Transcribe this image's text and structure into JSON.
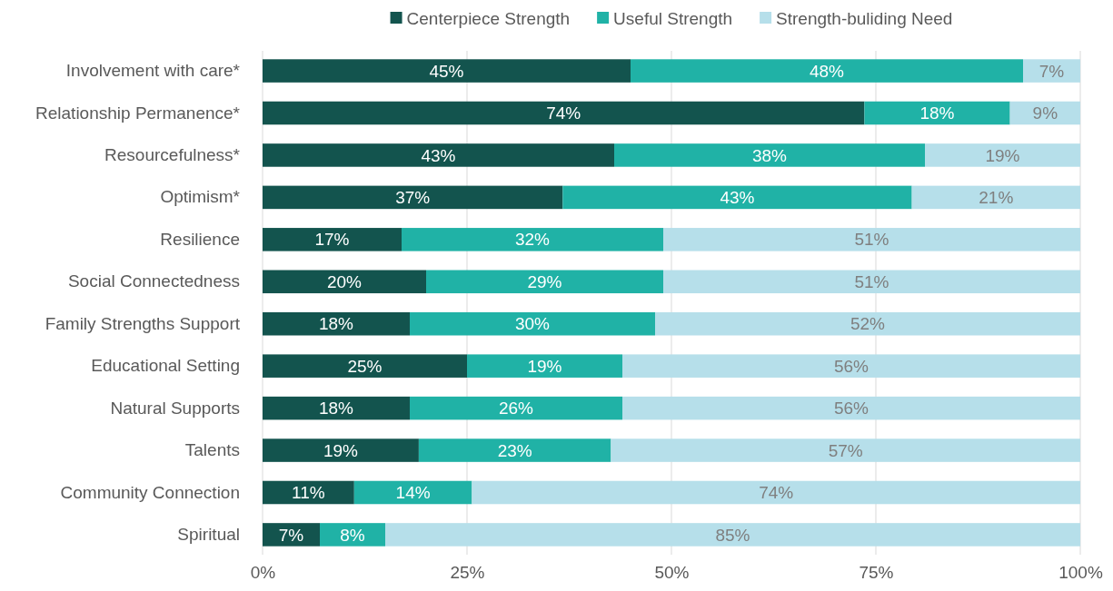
{
  "chart_data": {
    "type": "bar",
    "orientation": "horizontal",
    "stacked": true,
    "categories": [
      "Involvement with care*",
      "Relationship Permanence*",
      "Resourcefulness*",
      "Optimism*",
      "Resilience",
      "Social Connectedness",
      "Family Strengths Support",
      "Educational Setting",
      "Natural Supports",
      "Talents",
      "Community Connection",
      "Spiritual"
    ],
    "series": [
      {
        "name": "Centerpiece Strength",
        "color": "#13544e",
        "values": [
          45,
          73.6,
          43,
          36.7,
          17,
          20,
          18,
          25,
          18,
          19.1,
          11.2,
          7
        ],
        "value_labels": [
          "45%",
          "74%",
          "43%",
          "37%",
          "17%",
          "20%",
          "18%",
          "25%",
          "18%",
          "19%",
          "11%",
          "7%"
        ]
      },
      {
        "name": "Useful Strength",
        "color": "#20b2a6",
        "values": [
          48,
          17.8,
          38,
          42.7,
          32,
          29,
          30,
          19,
          26,
          23.5,
          14.4,
          8
        ],
        "value_labels": [
          "48%",
          "18%",
          "38%",
          "43%",
          "32%",
          "29%",
          "30%",
          "19%",
          "26%",
          "23%",
          "14%",
          "8%"
        ]
      },
      {
        "name": "Strength-buliding Need",
        "color": "#b6dfea",
        "values": [
          7,
          8.6,
          19,
          20.6,
          51,
          51,
          52,
          56,
          56,
          57.4,
          74.4,
          85
        ],
        "value_labels": [
          "7%",
          "9%",
          "19%",
          "21%",
          "51%",
          "51%",
          "52%",
          "56%",
          "56%",
          "57%",
          "74%",
          "85%"
        ]
      }
    ],
    "xlim": [
      0,
      100
    ],
    "xticks": [
      {
        "value": 0,
        "label": "0%"
      },
      {
        "value": 25,
        "label": "25%"
      },
      {
        "value": 50,
        "label": "50%"
      },
      {
        "value": 75,
        "label": "75%"
      },
      {
        "value": 100,
        "label": "100%"
      }
    ],
    "grid": "x",
    "legend": "top"
  }
}
